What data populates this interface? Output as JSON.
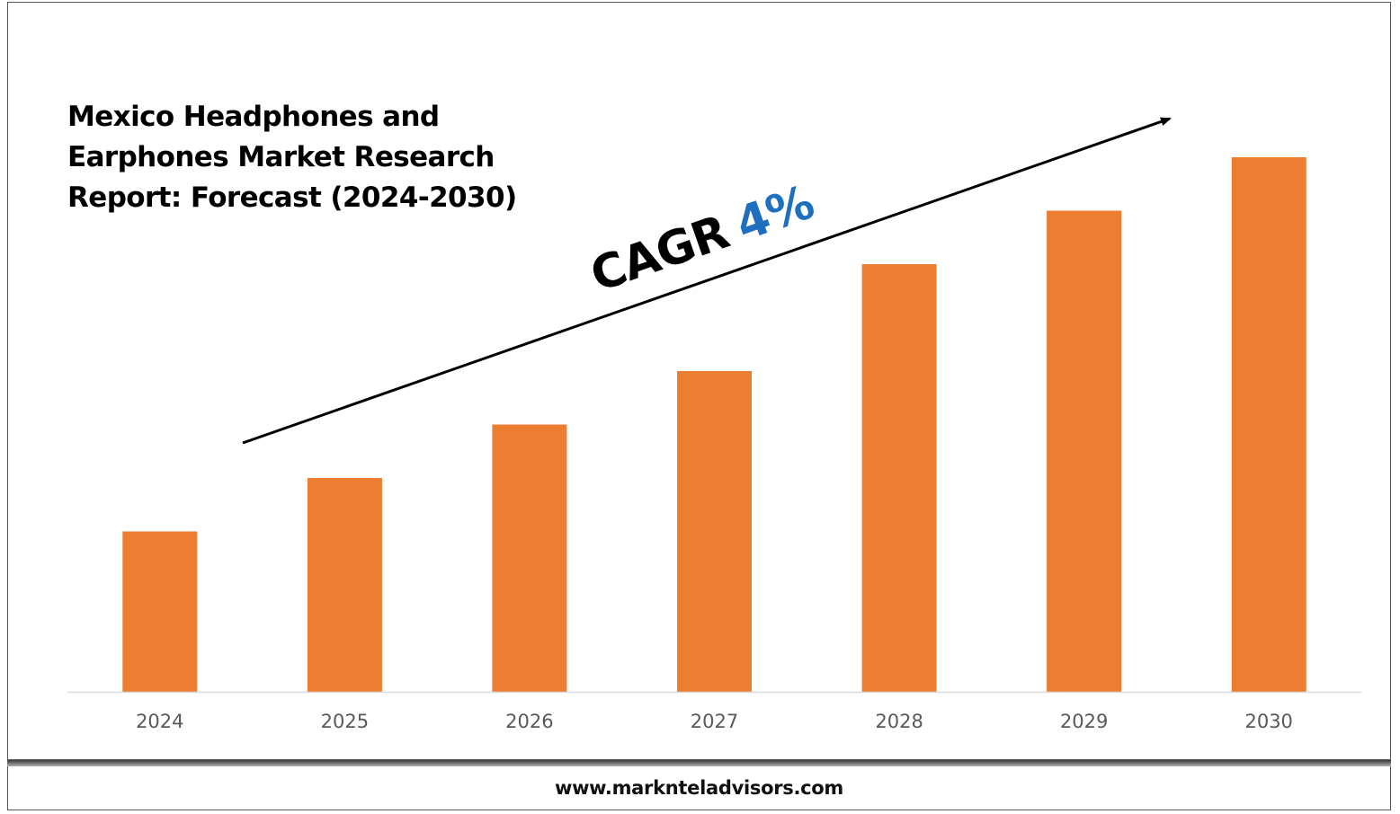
{
  "title_lines": [
    "Mexico Headphones and",
    "Earphones Market Research",
    "Report: Forecast (2024-2030)"
  ],
  "cagr": {
    "label": "CAGR",
    "value": "4%"
  },
  "footer": {
    "website": "www.marknteladvisors.com"
  },
  "colors": {
    "bar": "#ED7D31",
    "cagr_value": "#1F6FC0",
    "axis": "#D9D9D9",
    "tick_label": "#595959"
  },
  "chart_data": {
    "type": "bar",
    "categories": [
      "2024",
      "2025",
      "2026",
      "2027",
      "2028",
      "2029",
      "2030"
    ],
    "values": [
      30,
      40,
      50,
      60,
      80,
      90,
      100
    ],
    "ylim": [
      0,
      100
    ],
    "grid": false,
    "legend": "none",
    "annotation": "trend arrow rising from 2024 to 2030"
  }
}
